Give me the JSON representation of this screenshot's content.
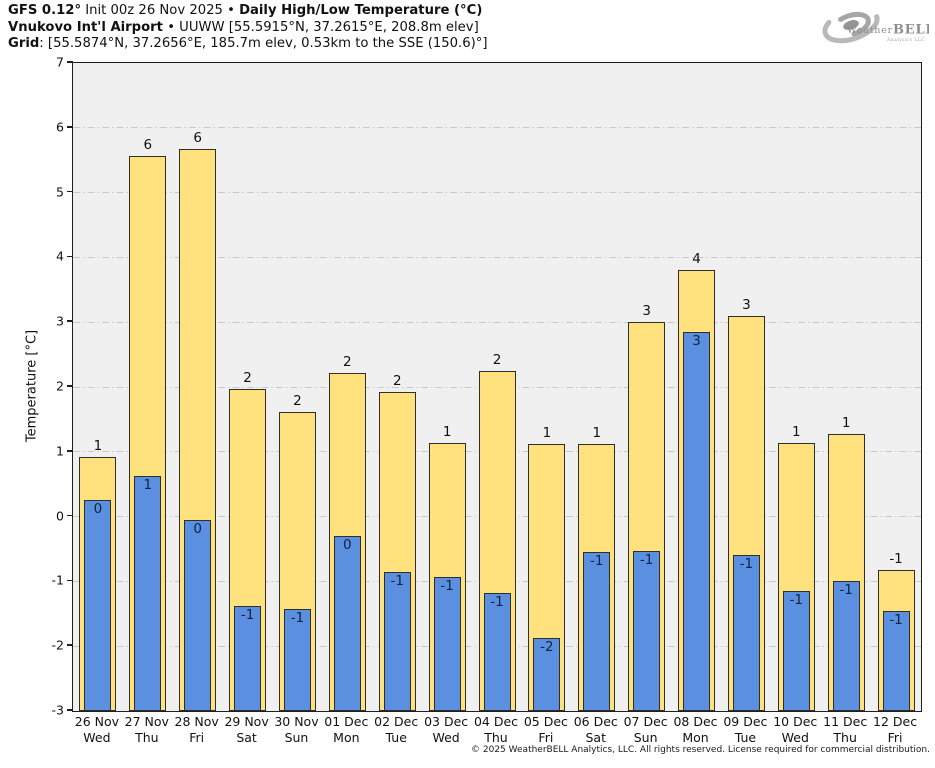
{
  "header": {
    "line1_bold1": "GFS 0.12°",
    "line1_normal": " Init 00z 26 Nov 2025 • ",
    "line1_bold2": "Daily High/Low Temperature (°C)",
    "line2_bold": "Vnukovo Int'l Airport",
    "line2_normal": " • UUWW [55.5915°N, 37.2615°E, 208.8m elev]",
    "line3_bold": "Grid",
    "line3_normal": ": [55.5874°N, 37.2656°E, 185.7m elev, 0.53km to the SSE (150.6)°]"
  },
  "logo": {
    "brand_part1": "Weather",
    "brand_part2": "BELL",
    "subtext": "Analytics LLC"
  },
  "footer": "© 2025 WeatherBELL Analytics, LLC. All rights reserved. License required for commercial distribution.",
  "chart_data": {
    "type": "bar",
    "title": "Daily High/Low Temperature (°C)",
    "subtitle": "GFS 0.12 Init 00z 26 Nov 2025 — Vnukovo Int'l Airport (UUWW)",
    "xlabel": "",
    "ylabel": "Temperature [°C]",
    "ylim": [
      -3,
      7
    ],
    "yticks": [
      7,
      6,
      5,
      4,
      3,
      2,
      1,
      0,
      -1,
      -2,
      -3
    ],
    "gridline_values": [
      6,
      5,
      4,
      3,
      2,
      1,
      0,
      -1,
      -2
    ],
    "grid": "horizontal dash-dot at integer values",
    "legend_position": "none",
    "categories": [
      {
        "date": "26 Nov",
        "weekday": "Wed"
      },
      {
        "date": "27 Nov",
        "weekday": "Thu"
      },
      {
        "date": "28 Nov",
        "weekday": "Fri"
      },
      {
        "date": "29 Nov",
        "weekday": "Sat"
      },
      {
        "date": "30 Nov",
        "weekday": "Sun"
      },
      {
        "date": "01 Dec",
        "weekday": "Mon"
      },
      {
        "date": "02 Dec",
        "weekday": "Tue"
      },
      {
        "date": "03 Dec",
        "weekday": "Wed"
      },
      {
        "date": "04 Dec",
        "weekday": "Thu"
      },
      {
        "date": "05 Dec",
        "weekday": "Fri"
      },
      {
        "date": "06 Dec",
        "weekday": "Sat"
      },
      {
        "date": "07 Dec",
        "weekday": "Sun"
      },
      {
        "date": "08 Dec",
        "weekday": "Mon"
      },
      {
        "date": "09 Dec",
        "weekday": "Tue"
      },
      {
        "date": "10 Dec",
        "weekday": "Wed"
      },
      {
        "date": "11 Dec",
        "weekday": "Thu"
      },
      {
        "date": "12 Dec",
        "weekday": "Fri"
      }
    ],
    "series": [
      {
        "name": "Daily High",
        "color": "#FFE27D",
        "labels": [
          "1",
          "6",
          "6",
          "2",
          "2",
          "2",
          "2",
          "1",
          "2",
          "1",
          "1",
          "3",
          "4",
          "3",
          "1",
          "1",
          "-1"
        ],
        "values": [
          0.92,
          5.57,
          5.68,
          1.97,
          1.62,
          2.22,
          1.93,
          1.13,
          2.25,
          1.12,
          1.12,
          3.0,
          3.8,
          3.1,
          1.13,
          1.28,
          -0.82
        ]
      },
      {
        "name": "Daily Low",
        "color": "#5B8FE0",
        "labels": [
          "0",
          "1",
          "0",
          "-1",
          "-1",
          "0",
          "-1",
          "-1",
          "-1",
          "-2",
          "-1",
          "-1",
          "3",
          "-1",
          "-1",
          "-1",
          "-1"
        ],
        "values": [
          0.25,
          0.62,
          -0.05,
          -1.38,
          -1.43,
          -0.3,
          -0.85,
          -0.93,
          -1.18,
          -1.87,
          -0.55,
          -0.53,
          2.85,
          -0.6,
          -1.15,
          -1.0,
          -1.45
        ]
      }
    ],
    "colors": {
      "plot_background": "#F0F0F0",
      "bar_border": "#2E2E2E",
      "gridline": "#C9C9C9",
      "axis": "#1F1F1F",
      "high_fill": "#FFE27D",
      "low_fill": "#5B8FE0"
    }
  }
}
